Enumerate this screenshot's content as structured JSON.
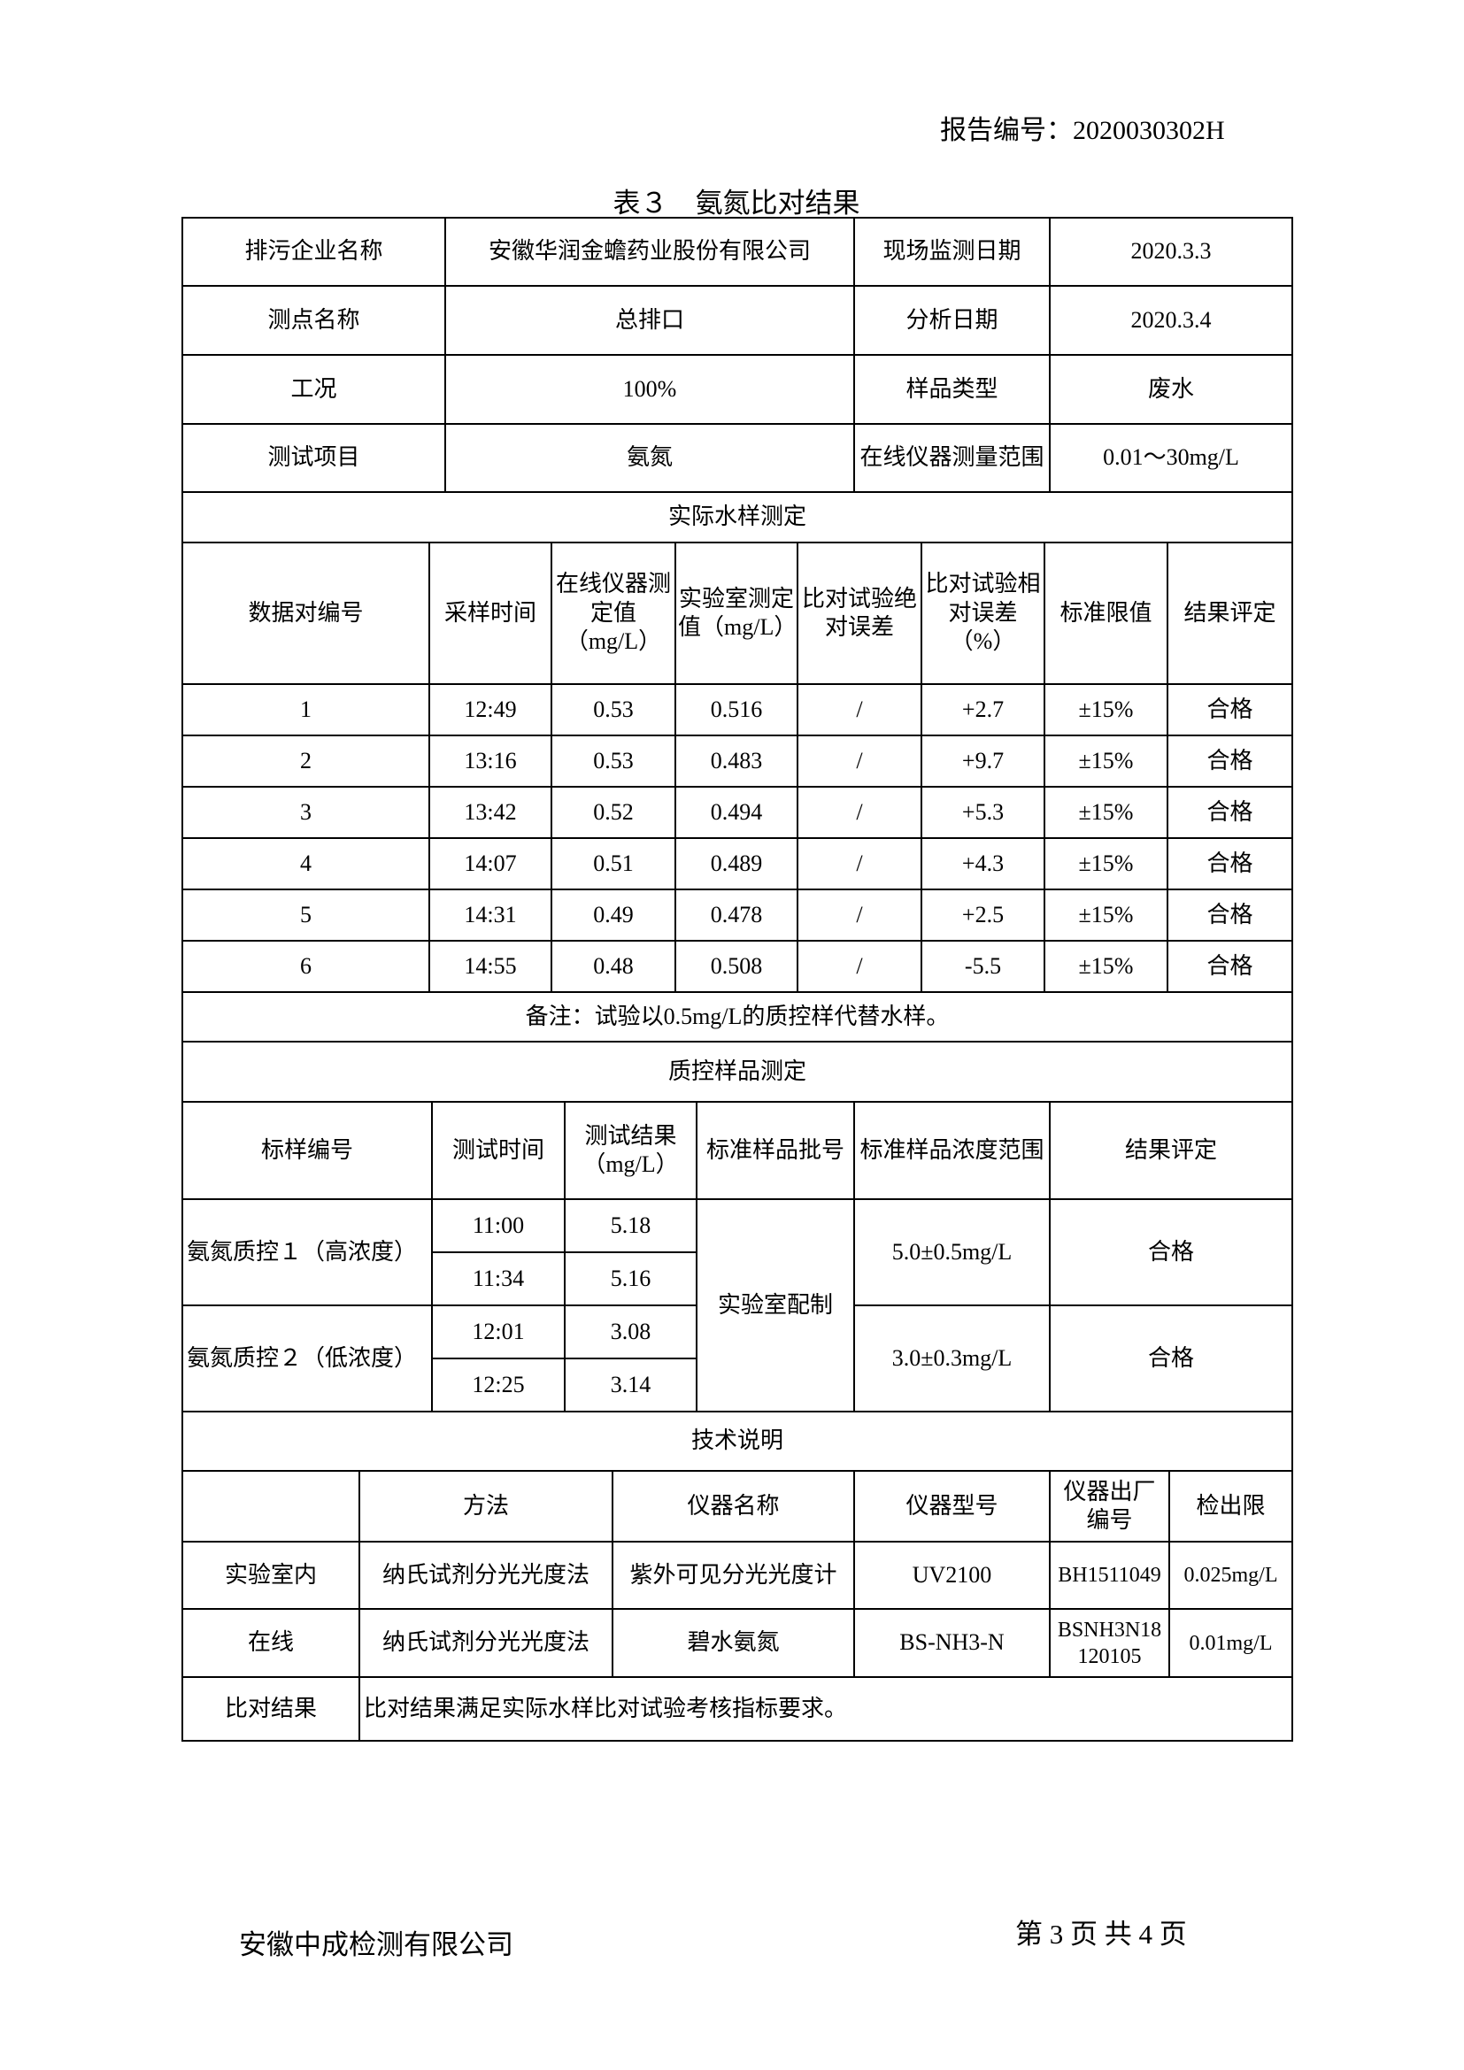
{
  "header": {
    "report_no": "报告编号：2020030302H"
  },
  "title": "表３　氨氮比对结果",
  "info": {
    "company_label": "排污企业名称",
    "company": "安徽华润金蟾药业股份有限公司",
    "monitor_date_label": "现场监测日期",
    "monitor_date": "2020.3.3",
    "point_label": "测点名称",
    "point": "总排口",
    "analysis_date_label": "分析日期",
    "analysis_date": "2020.3.4",
    "condition_label": "工况",
    "condition": "100%",
    "sample_type_label": "样品类型",
    "sample_type": "废水",
    "item_label": "测试项目",
    "item": "氨氮",
    "range_label": "在线仪器测量范围",
    "range": "0.01～30mg/L"
  },
  "actual": {
    "section_title": "实际水样测定",
    "headers": [
      "数据对编号",
      "采样时间",
      "在线仪器测定值（mg/L）",
      "实验室测定值（mg/L）",
      "比对试验绝对误差",
      "比对试验相对误差（%）",
      "标准限值",
      "结果评定"
    ],
    "rows": [
      [
        "1",
        "12:49",
        "0.53",
        "0.516",
        "/",
        "+2.7",
        "±15%",
        "合格"
      ],
      [
        "2",
        "13:16",
        "0.53",
        "0.483",
        "/",
        "+9.7",
        "±15%",
        "合格"
      ],
      [
        "3",
        "13:42",
        "0.52",
        "0.494",
        "/",
        "+5.3",
        "±15%",
        "合格"
      ],
      [
        "4",
        "14:07",
        "0.51",
        "0.489",
        "/",
        "+4.3",
        "±15%",
        "合格"
      ],
      [
        "5",
        "14:31",
        "0.49",
        "0.478",
        "/",
        "+2.5",
        "±15%",
        "合格"
      ],
      [
        "6",
        "14:55",
        "0.48",
        "0.508",
        "/",
        "-5.5",
        "±15%",
        "合格"
      ]
    ],
    "note": "备注：试验以0.5mg/L的质控样代替水样。"
  },
  "qc": {
    "section_title": "质控样品测定",
    "headers": [
      "标样编号",
      "测试时间",
      "测试结果（mg/L）",
      "标准样品批号",
      "标准样品浓度范围",
      "结果评定"
    ],
    "batch": "实验室配制",
    "groups": [
      {
        "name": "氨氮质控１（高浓度）",
        "times": [
          "11:00",
          "11:34"
        ],
        "results": [
          "5.18",
          "5.16"
        ],
        "range": "5.0±0.5mg/L",
        "verdict": "合格"
      },
      {
        "name": "氨氮质控２（低浓度）",
        "times": [
          "12:01",
          "12:25"
        ],
        "results": [
          "3.08",
          "3.14"
        ],
        "range": "3.0±0.3mg/L",
        "verdict": "合格"
      }
    ]
  },
  "tech": {
    "section_title": "技术说明",
    "headers": [
      "",
      "方法",
      "仪器名称",
      "仪器型号",
      "仪器出厂编号",
      "检出限"
    ],
    "rows": [
      [
        "实验室内",
        "纳氏试剂分光光度法",
        "紫外可见分光光度计",
        "UV2100",
        "BH1511049",
        "0.025mg/L"
      ],
      [
        "在线",
        "纳氏试剂分光光度法",
        "碧水氨氮",
        "BS-NH3-N",
        "BSNH3N18120105",
        "0.01mg/L"
      ]
    ],
    "result_label": "比对结果",
    "result": "比对结果满足实际水样比对试验考核指标要求。"
  },
  "footer": {
    "company": "安徽中成检测有限公司",
    "page": "第 3 页 共 4 页"
  }
}
